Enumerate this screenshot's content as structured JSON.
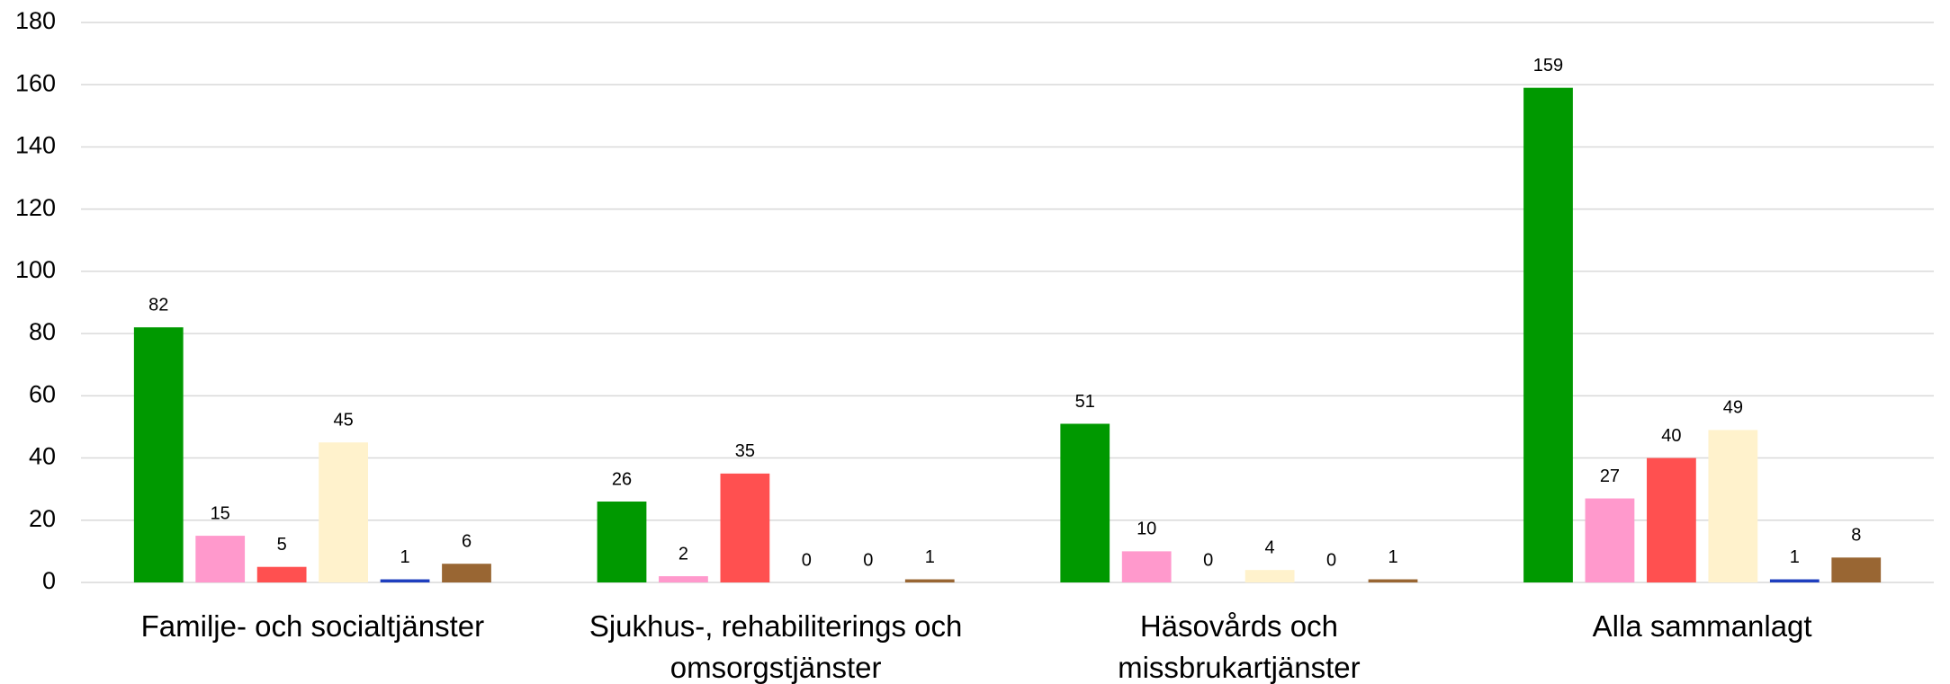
{
  "chart_data": {
    "type": "bar",
    "categories": [
      "Familje- och socialtjänster",
      "Sjukhus-, rehabiliterings och omsorgstjänster",
      "Häsovårds och missbrukartjänster",
      "Alla sammanlagt"
    ],
    "series": [
      {
        "color": "#009900",
        "values": [
          82,
          26,
          51,
          159
        ]
      },
      {
        "color": "#ff99cc",
        "values": [
          15,
          2,
          10,
          27
        ]
      },
      {
        "color": "#ff5050",
        "values": [
          5,
          35,
          0,
          40
        ]
      },
      {
        "color": "#fff2cc",
        "values": [
          45,
          0,
          4,
          49
        ]
      },
      {
        "color": "#1f3fbf",
        "values": [
          1,
          0,
          0,
          1
        ]
      },
      {
        "color": "#996633",
        "values": [
          6,
          1,
          1,
          8
        ]
      }
    ],
    "ylim": [
      0,
      180
    ],
    "yticks": [
      0,
      20,
      40,
      60,
      80,
      100,
      120,
      140,
      160,
      180
    ],
    "grid": true
  }
}
